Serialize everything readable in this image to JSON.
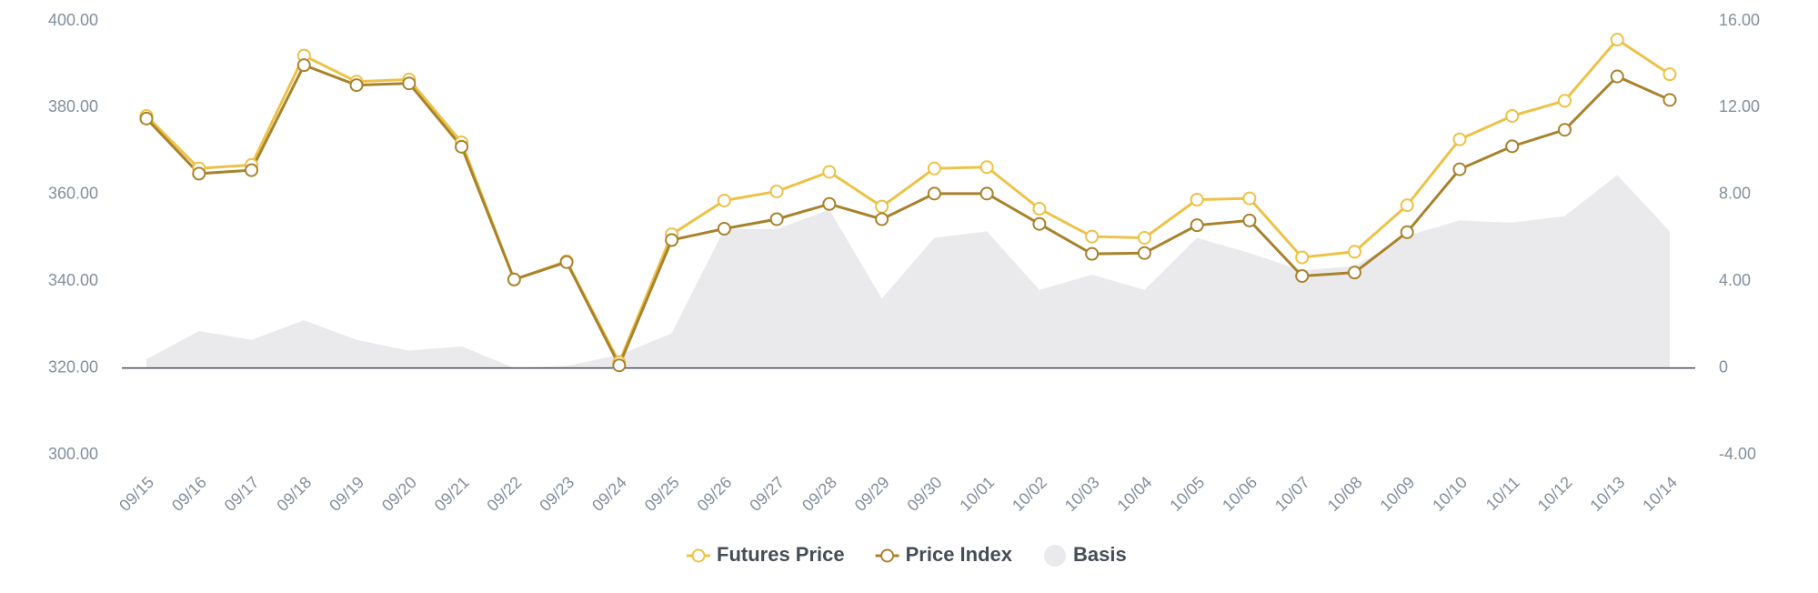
{
  "chart_data": {
    "type": "line",
    "categories": [
      "09/15",
      "09/16",
      "09/17",
      "09/18",
      "09/19",
      "09/20",
      "09/21",
      "09/22",
      "09/23",
      "09/24",
      "09/25",
      "09/26",
      "09/27",
      "09/28",
      "09/29",
      "09/30",
      "10/01",
      "10/02",
      "10/03",
      "10/04",
      "10/05",
      "10/06",
      "10/07",
      "10/08",
      "10/09",
      "10/10",
      "10/11",
      "10/12",
      "10/13",
      "10/14"
    ],
    "series": [
      {
        "name": "Futures Price",
        "color": "#ecc247",
        "values": [
          378.1,
          366,
          366.8,
          392,
          386,
          386.5,
          372,
          340.4,
          344.6,
          321.3,
          350.8,
          358.6,
          360.7,
          365.2,
          357.2,
          366,
          366.3,
          356.7,
          350.3,
          350,
          358.8,
          359.1,
          345.5,
          346.8,
          357.5,
          372.7,
          378.1,
          381.6,
          395.7,
          387.7
        ]
      },
      {
        "name": "Price Index",
        "color": "#a8822c",
        "values": [
          377.5,
          364.8,
          365.6,
          389.8,
          385.2,
          385.6,
          371,
          340.4,
          344.4,
          320.6,
          349.5,
          352.1,
          354.3,
          357.8,
          354.3,
          360.2,
          360.2,
          353.2,
          346.3,
          346.5,
          352.9,
          354,
          341.2,
          342,
          351.3,
          365.8,
          371.1,
          374.9,
          387.2,
          381.8
        ]
      },
      {
        "name": "Basis",
        "color": "#eaeaec",
        "type": "area",
        "axis": "y2",
        "values": [
          0.4,
          1.7,
          1.3,
          2.2,
          1.3,
          0.8,
          1.0,
          0,
          0.1,
          0.6,
          1.6,
          6.4,
          6.4,
          7.3,
          3.2,
          6.0,
          6.3,
          3.6,
          4.3,
          3.6,
          6.0,
          5.3,
          4.5,
          4.7,
          6.1,
          6.8,
          6.7,
          7.0,
          8.9,
          6.3
        ]
      }
    ],
    "ylim": [
      300,
      400
    ],
    "yticks": [
      {
        "value": 300,
        "label": "300.00"
      },
      {
        "value": 320,
        "label": "320.00"
      },
      {
        "value": 340,
        "label": "340.00"
      },
      {
        "value": 360,
        "label": "360.00"
      },
      {
        "value": 380,
        "label": "380.00"
      },
      {
        "value": 400,
        "label": "400.00"
      }
    ],
    "y2lim": [
      -4,
      16
    ],
    "y2ticks": [
      {
        "value": -4,
        "label": "-4.00"
      },
      0,
      {
        "value": 4,
        "label": "4.00"
      },
      {
        "value": 8,
        "label": "8.00"
      },
      {
        "value": 12,
        "label": "12.00"
      },
      {
        "value": 16,
        "label": "16.00"
      }
    ],
    "legend": "bottom"
  }
}
